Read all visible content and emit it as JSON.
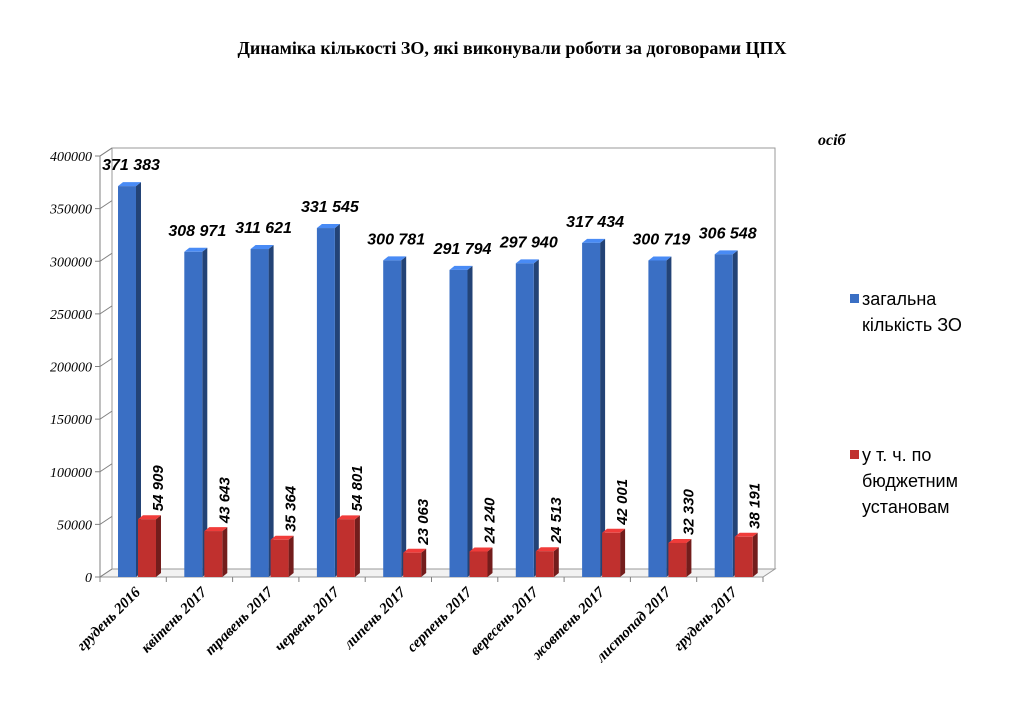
{
  "chart_data": {
    "type": "bar",
    "title": "Динаміка кількості ЗО, які виконували роботи за договорами ЦПХ",
    "unit_label": "осіб",
    "categories": [
      "грудень 2016",
      "квітень 2017",
      "травень 2017",
      "червень 2017",
      "липень 2017",
      "серпень 2017",
      "вересень 2017",
      "жовтень 2017",
      "листопад 2017",
      "грудень 2017"
    ],
    "series": [
      {
        "name": "загальна кількість ЗО",
        "color": "#3a6fc4",
        "values": [
          371383,
          308971,
          311621,
          331545,
          300781,
          291794,
          297940,
          317434,
          300719,
          306548
        ],
        "labels": [
          "371 383",
          "308 971",
          "311 621",
          "331 545",
          "300 781",
          "291 794",
          "297 940",
          "317 434",
          "300 719",
          "306 548"
        ]
      },
      {
        "name": "у т. ч. по бюджетним установам",
        "color": "#c0302e",
        "values": [
          54909,
          43643,
          35364,
          54801,
          23063,
          24240,
          24513,
          42001,
          32330,
          38191
        ],
        "labels": [
          "54 909",
          "43 643",
          "35 364",
          "54 801",
          "23 063",
          "24 240",
          "24 513",
          "42 001",
          "32 330",
          "38 191"
        ]
      }
    ],
    "y_ticks": [
      "0",
      "50000",
      "100000",
      "150000",
      "200000",
      "250000",
      "300000",
      "350000",
      "400000"
    ],
    "ylim": [
      0,
      400000
    ],
    "grid": false,
    "legend_position": "right"
  }
}
